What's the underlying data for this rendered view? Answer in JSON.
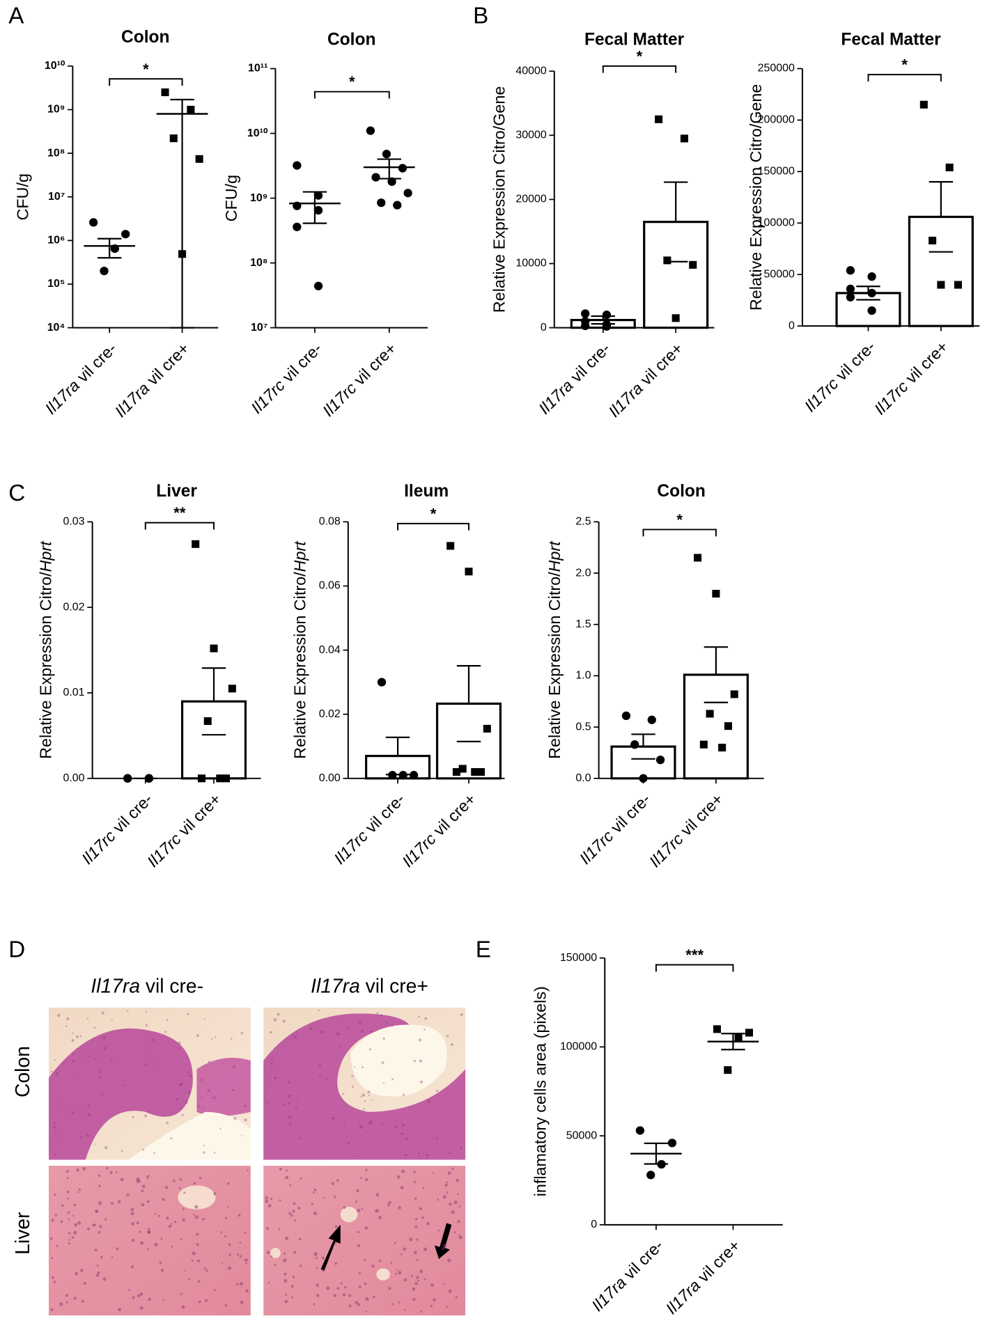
{
  "panel_labels": [
    "A",
    "B",
    "C",
    "D",
    "E"
  ],
  "histology": {
    "columns": [
      "Il17ra vil  cre-",
      "Il17ra vil cre+"
    ],
    "rows": [
      "Colon",
      "Liver"
    ]
  },
  "chart_data": [
    {
      "type": "dotplot",
      "title": "Colon",
      "ylabel": "CFU/g",
      "log": true,
      "categories": [
        "Il17ra vil cre-",
        "Il17ra vil cre+"
      ],
      "markers": [
        "circle",
        "square"
      ],
      "color": "#000000",
      "values": [
        750000,
        800000000
      ],
      "errors": [
        350000,
        900000000
      ],
      "points": [
        [
          2600000,
          1400000,
          650000,
          200000
        ],
        [
          2500000000,
          1000000000,
          220000000,
          74000000,
          490000
        ]
      ],
      "significance": "*",
      "ylim": [
        10000,
        10000000000
      ],
      "yticks": [
        {
          "value": 10000,
          "label": "10⁴"
        },
        {
          "value": 100000,
          "label": "10⁵"
        },
        {
          "value": 1000000,
          "label": "10⁶"
        },
        {
          "value": 10000000,
          "label": "10⁷"
        },
        {
          "value": 100000000,
          "label": "10⁸"
        },
        {
          "value": 1000000000,
          "label": "10⁹"
        },
        {
          "value": 10000000000,
          "label": "10¹⁰"
        }
      ]
    },
    {
      "type": "dotplot",
      "title": "Colon",
      "ylabel": "CFU/g",
      "log": true,
      "categories": [
        "Il17rc vil cre-",
        "Il17rc vil cre+"
      ],
      "markers": [
        "circle",
        "circle"
      ],
      "color": "#000000",
      "values": [
        830000000,
        3000000000
      ],
      "errors": [
        420000000,
        1000000000
      ],
      "points": [
        [
          3200000000,
          1100000000,
          760000000,
          650000000,
          360000000,
          44000000
        ],
        [
          11000000000,
          4800000000,
          2900000000,
          2100000000,
          1800000000,
          1200000000,
          850000000,
          780000000
        ]
      ],
      "significance": "*",
      "ylim": [
        10000000,
        100000000000
      ],
      "yticks": [
        {
          "value": 10000000,
          "label": "10⁷"
        },
        {
          "value": 100000000,
          "label": "10⁸"
        },
        {
          "value": 1000000000,
          "label": "10⁹"
        },
        {
          "value": 10000000000,
          "label": "10¹⁰"
        },
        {
          "value": 100000000000,
          "label": "10¹¹"
        }
      ]
    },
    {
      "type": "bar",
      "title": "Fecal Matter",
      "ylabel": "Relative Expression Citro/Gene",
      "categories": [
        "Il17ra vil cre-",
        "Il17ra vil cre+"
      ],
      "markers": [
        "circle",
        "square"
      ],
      "color": "#000000",
      "values": [
        1200,
        16500
      ],
      "errors": [
        600,
        6200
      ],
      "points": [
        [
          2200,
          2000,
          1000,
          500,
          300,
          200
        ],
        [
          32500,
          29500,
          10500,
          9800,
          1500
        ]
      ],
      "significance": "*",
      "ylim": [
        0,
        40000
      ],
      "yticks": [
        0,
        10000,
        20000,
        30000,
        40000
      ]
    },
    {
      "type": "bar",
      "title": "Fecal Matter",
      "ylabel": "Relative Expression Citro/Gene",
      "categories": [
        "Il17rc vil cre-",
        "Il17rc vil cre+"
      ],
      "markers": [
        "circle",
        "square"
      ],
      "color": "#000000",
      "values": [
        32000,
        106000
      ],
      "errors": [
        6500,
        34000
      ],
      "points": [
        [
          54000,
          48000,
          36000,
          32000,
          28000,
          15000
        ],
        [
          215000,
          154000,
          83000,
          40000,
          40000
        ]
      ],
      "significance": "*",
      "ylim": [
        0,
        250000
      ],
      "yticks": [
        0,
        50000,
        100000,
        150000,
        200000,
        250000
      ]
    },
    {
      "type": "bar",
      "title": "Liver",
      "ylabel": "Relative Expression Citro/Hprt",
      "ylabel_italic_tail": true,
      "categories": [
        "Il17rc vil cre-",
        "Il17rc vil cre+"
      ],
      "markers": [
        "circle",
        "square"
      ],
      "color": "#000000",
      "values": [
        0,
        0.009
      ],
      "errors": [
        0,
        0.0039
      ],
      "points": [
        [
          0,
          0,
          0,
          0,
          0,
          0
        ],
        [
          0.0274,
          0.0152,
          0.0105,
          0.0067,
          0,
          0,
          0
        ]
      ],
      "significance": "**",
      "ylim": [
        0,
        0.03
      ],
      "yticks": [
        {
          "value": 0,
          "label": "0.00"
        },
        0.01,
        0.02,
        0.03
      ]
    },
    {
      "type": "bar",
      "title": "Ileum",
      "ylabel": "Relative Expression Citro/Hprt",
      "ylabel_italic_tail": true,
      "categories": [
        "Il17rc vil cre-",
        "Il17rc vil cre+"
      ],
      "markers": [
        "circle",
        "square"
      ],
      "color": "#000000",
      "values": [
        0.007,
        0.0233
      ],
      "errors": [
        0.0058,
        0.0118
      ],
      "points": [
        [
          0.03,
          0.001,
          0.001,
          0.001
        ],
        [
          0.0725,
          0.0645,
          0.0155,
          0.003,
          0.002,
          0.002,
          0.002
        ]
      ],
      "significance": "*",
      "ylim": [
        0,
        0.08
      ],
      "yticks": [
        {
          "value": 0,
          "label": "0.00"
        },
        0.02,
        0.04,
        0.06,
        0.08
      ]
    },
    {
      "type": "bar",
      "title": "Colon",
      "ylabel": "Relative Expression Citro/Hprt",
      "ylabel_italic_tail": true,
      "categories": [
        "Il17rc vil cre-",
        "Il17rc vil cre+"
      ],
      "markers": [
        "circle",
        "square"
      ],
      "color": "#000000",
      "values": [
        0.31,
        1.01
      ],
      "errors": [
        0.12,
        0.27
      ],
      "points": [
        [
          0.61,
          0.57,
          0.33,
          0.18,
          0
        ],
        [
          2.15,
          1.8,
          0.82,
          0.63,
          0.51,
          0.33,
          0.3
        ]
      ],
      "significance": "*",
      "ylim": [
        0,
        2.5
      ],
      "yticks": [
        {
          "value": 0,
          "label": "0.0"
        },
        0.5,
        {
          "value": 1,
          "label": "1.0"
        },
        1.5,
        {
          "value": 2,
          "label": "2.0"
        },
        2.5
      ]
    },
    {
      "type": "dotplot",
      "ylabel": "inflamatory cells area (pixels)",
      "categories": [
        "Il17ra vil cre-",
        "Il17ra vil cre+"
      ],
      "markers": [
        "circle",
        "square"
      ],
      "color": "#000000",
      "values": [
        40000,
        103000
      ],
      "errors": [
        5800,
        4500
      ],
      "points": [
        [
          53000,
          46000,
          34000,
          28000
        ],
        [
          110000,
          108000,
          105000,
          87000
        ]
      ],
      "significance": "***",
      "ylim": [
        0,
        150000
      ],
      "yticks": [
        0,
        50000,
        100000,
        150000
      ]
    }
  ]
}
